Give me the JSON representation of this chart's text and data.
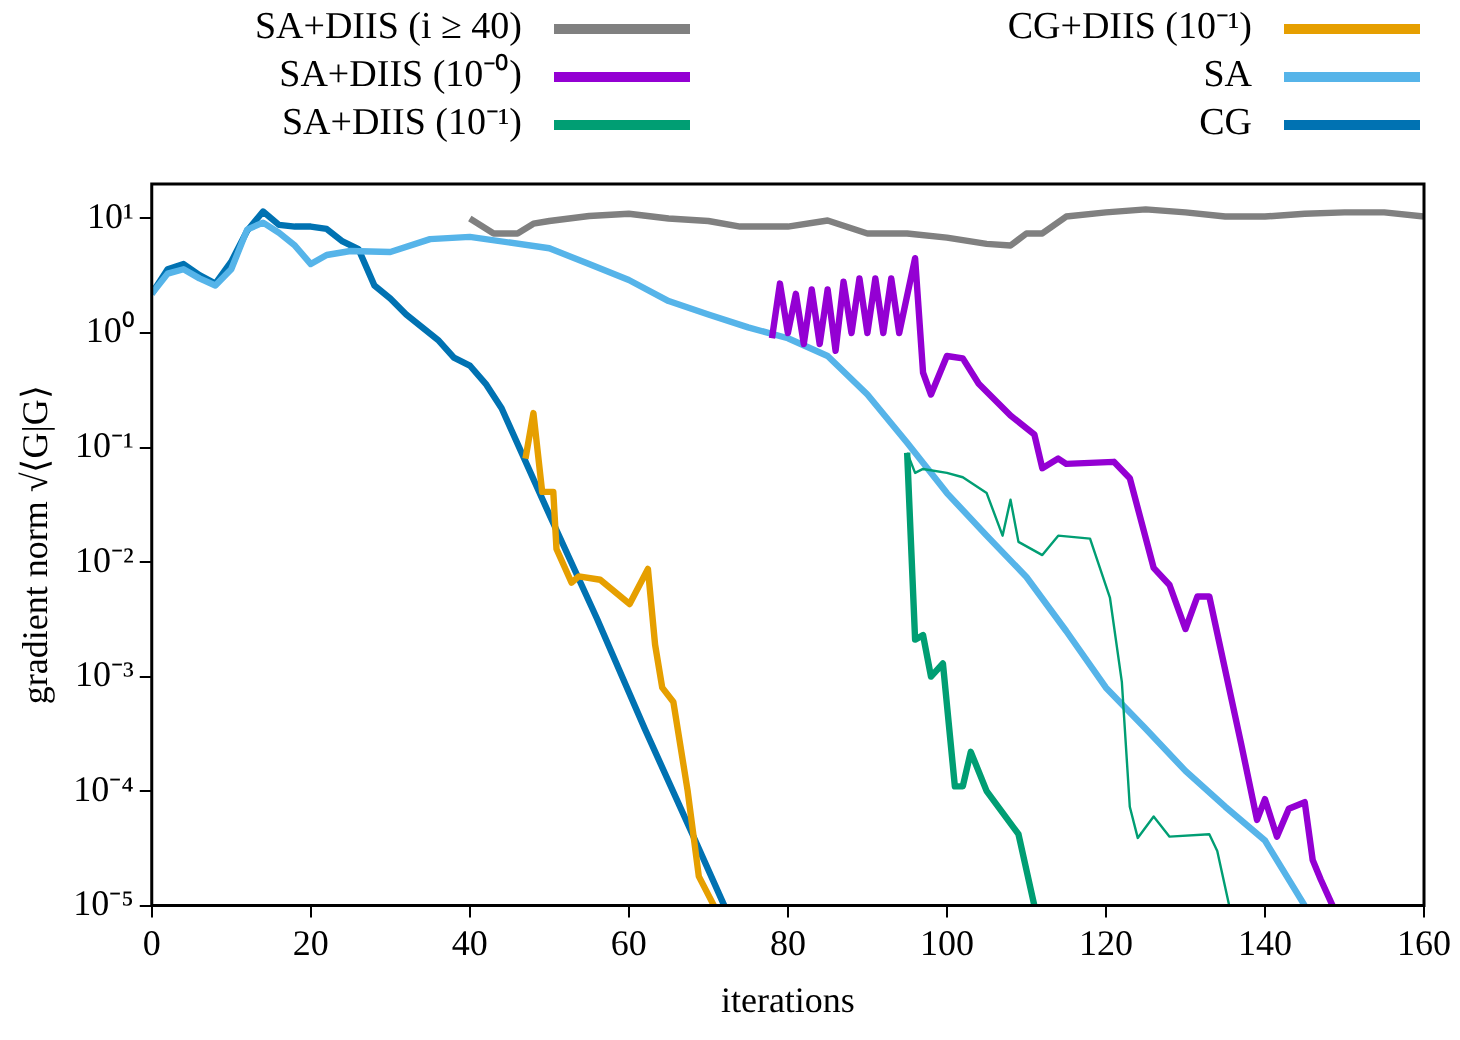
{
  "chart_data": {
    "type": "line",
    "xlabel": "iterations",
    "ylabel": "gradient norm √⟨G|G⟩",
    "log": "y",
    "legend": "top",
    "grid": false,
    "line_style": "solid",
    "marker": "none",
    "xlim": [
      0,
      160
    ],
    "xticks": [
      0,
      20,
      40,
      60,
      80,
      100,
      120,
      140,
      160
    ],
    "ylim": [
      1e-05,
      20
    ],
    "yticks": [
      {
        "value": 1e-05,
        "label": "10⁻⁵"
      },
      {
        "value": 0.0001,
        "label": "10⁻⁴"
      },
      {
        "value": 0.001,
        "label": "10⁻³"
      },
      {
        "value": 0.01,
        "label": "10⁻²"
      },
      {
        "value": 0.1,
        "label": "10⁻¹"
      },
      {
        "value": 1,
        "label": "10⁰"
      },
      {
        "value": 10,
        "label": "10¹"
      }
    ],
    "series": [
      {
        "name": "SA+DIIS (i ≥ 40)",
        "color": "#808080",
        "x": [
          40,
          43,
          46,
          48,
          50,
          55,
          60,
          65,
          70,
          74,
          80,
          85,
          90,
          95,
          100,
          105,
          108,
          110,
          112,
          115,
          120,
          125,
          130,
          135,
          140,
          145,
          150,
          155,
          160
        ],
        "values": [
          10,
          7.4,
          7.4,
          9,
          9.5,
          10.5,
          11,
          10,
          9.5,
          8.5,
          8.5,
          9.6,
          7.4,
          7.4,
          6.8,
          6,
          5.8,
          7.4,
          7.4,
          10.4,
          11.3,
          12,
          11.3,
          10.4,
          10.4,
          11,
          11.3,
          11.3,
          10.4
        ]
      },
      {
        "name": "SA+DIIS (10⁻⁰)",
        "color": "#9400d3",
        "x": [
          78,
          79,
          80,
          81,
          82,
          83,
          84,
          85,
          86,
          87,
          88,
          89,
          90,
          91,
          92,
          93,
          94,
          96,
          97,
          98,
          100,
          102,
          104,
          108,
          111,
          112,
          114,
          115,
          121,
          123,
          126,
          128,
          130,
          131.5,
          133,
          137,
          139,
          140,
          141.5,
          143,
          145,
          146,
          147,
          148.5
        ],
        "values": [
          0.9,
          2.7,
          1.0,
          2.2,
          0.8,
          2.4,
          0.8,
          2.4,
          0.7,
          2.8,
          1.0,
          3.0,
          1.0,
          3.0,
          1.0,
          3.0,
          1.0,
          4.5,
          0.45,
          0.29,
          0.63,
          0.6,
          0.36,
          0.19,
          0.13,
          0.066,
          0.08,
          0.072,
          0.075,
          0.054,
          0.0089,
          0.0063,
          0.0026,
          0.005,
          0.005,
          0.00026,
          5.6e-05,
          8.5e-05,
          4e-05,
          7e-05,
          8e-05,
          2.5e-05,
          1.7e-05,
          1e-05
        ]
      },
      {
        "name": "SA+DIIS (10⁻¹)",
        "color": "#009e73",
        "x": [
          95,
          96,
          97,
          98,
          99.5,
          101,
          102,
          103,
          105,
          109,
          111
        ],
        "values": [
          0.09,
          0.0021,
          0.0023,
          0.001,
          0.0013,
          0.00011,
          0.00011,
          0.00022,
          0.0001,
          4.2e-05,
          1e-05
        ]
      },
      {
        "color": "#009e73",
        "x": [
          95,
          96,
          97,
          100,
          102,
          105,
          107,
          108,
          109,
          112,
          114,
          118,
          120.5,
          122,
          123,
          124,
          126,
          128,
          133,
          134,
          135.5
        ],
        "values": [
          0.09,
          0.06,
          0.065,
          0.06,
          0.055,
          0.04,
          0.017,
          0.035,
          0.015,
          0.0115,
          0.017,
          0.016,
          0.0049,
          0.0009,
          7.3e-05,
          3.9e-05,
          6e-05,
          4e-05,
          4.2e-05,
          3e-05,
          1e-05
        ]
      },
      {
        "name": "CG+DIIS (10⁻¹)",
        "color": "#e69f00",
        "x": [
          47,
          48,
          49.1,
          50.5,
          50.9,
          52.8,
          53.7,
          56.4,
          60.1,
          62.4,
          63.3,
          64.2,
          65.6,
          67.4,
          68.8,
          70.7
        ],
        "values": [
          0.08,
          0.2,
          0.041,
          0.041,
          0.013,
          0.0066,
          0.0075,
          0.007,
          0.0043,
          0.0087,
          0.0019,
          0.0008,
          0.0006,
          0.0001,
          1.8e-05,
          1e-05
        ]
      },
      {
        "name": "SA",
        "color": "#56b4e9",
        "x": [
          0,
          2,
          4,
          6,
          8,
          10,
          12,
          14,
          16,
          18,
          20,
          22,
          25,
          30,
          35,
          40,
          50,
          55,
          60,
          65,
          70,
          75,
          80,
          85,
          90,
          95,
          100,
          105,
          110,
          115,
          120,
          125,
          130,
          135,
          140,
          145
        ],
        "values": [
          2.2,
          3.3,
          3.6,
          3.0,
          2.6,
          3.6,
          8,
          9.2,
          7.5,
          5.8,
          4.0,
          4.8,
          5.2,
          5.1,
          6.6,
          6.9,
          5.5,
          4,
          2.9,
          1.9,
          1.45,
          1.12,
          0.9,
          0.63,
          0.29,
          0.11,
          0.04,
          0.017,
          0.0074,
          0.0025,
          0.0008,
          0.00035,
          0.00015,
          7.3e-05,
          3.7e-05,
          1e-05
        ]
      },
      {
        "name": "CG",
        "color": "#0072b2",
        "x": [
          0,
          2,
          4,
          6,
          8,
          10,
          12,
          14,
          16,
          18,
          20,
          22,
          24,
          26,
          28,
          30,
          32,
          34,
          36,
          38,
          40,
          42,
          44,
          50,
          56,
          62,
          68,
          72
        ],
        "values": [
          2.2,
          3.6,
          4,
          3.2,
          2.7,
          4.2,
          7.8,
          11.5,
          8.8,
          8.5,
          8.5,
          8.1,
          6.3,
          5.4,
          2.6,
          2.0,
          1.45,
          1.12,
          0.87,
          0.61,
          0.52,
          0.36,
          0.22,
          0.026,
          0.0032,
          0.00035,
          4.2e-05,
          1e-05
        ]
      }
    ]
  }
}
